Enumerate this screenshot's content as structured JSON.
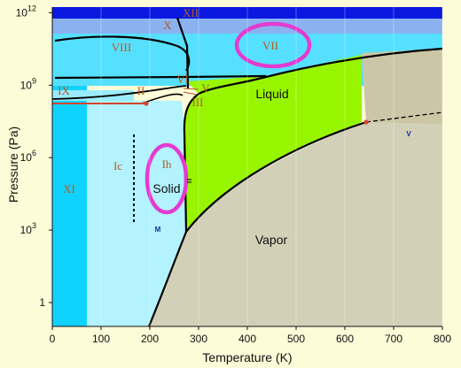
{
  "chart_data": {
    "type": "phase-diagram",
    "xlabel": "Temperature (K)",
    "ylabel": "Pressure (Pa)",
    "xlim": [
      0,
      800
    ],
    "x_ticks": [
      "0",
      "100",
      "200",
      "300",
      "400",
      "500",
      "600",
      "700",
      "800"
    ],
    "y_scale": "log",
    "y_ticks": [
      {
        "label": "1",
        "exp": null
      },
      {
        "label": "10",
        "exp": "3"
      },
      {
        "label": "10",
        "exp": "6"
      },
      {
        "label": "10",
        "exp": "9"
      },
      {
        "label": "10",
        "exp": "12"
      }
    ],
    "phase_labels": [
      {
        "id": "XII",
        "text": "XII",
        "style": "roman"
      },
      {
        "id": "X",
        "text": "X",
        "style": "roman"
      },
      {
        "id": "VIII",
        "text": "VIII",
        "style": "roman"
      },
      {
        "id": "VII",
        "text": "VII",
        "style": "roman"
      },
      {
        "id": "IX",
        "text": "IX",
        "style": "roman"
      },
      {
        "id": "II",
        "text": "II",
        "style": "roman"
      },
      {
        "id": "VI",
        "text": "VI",
        "style": "roman"
      },
      {
        "id": "V",
        "text": "V",
        "style": "roman"
      },
      {
        "id": "III",
        "text": "III",
        "style": "roman"
      },
      {
        "id": "Ic",
        "text": "Ic",
        "style": "roman"
      },
      {
        "id": "Ih",
        "text": "Ih",
        "style": "roman"
      },
      {
        "id": "XI",
        "text": "XI",
        "style": "roman"
      },
      {
        "id": "Liquid",
        "text": "Liquid",
        "style": "sans"
      },
      {
        "id": "Solid",
        "text": "Solid",
        "style": "sans"
      },
      {
        "id": "Vapor",
        "text": "Vapor",
        "style": "sans"
      },
      {
        "id": "M",
        "text": "M",
        "style": "tiny"
      },
      {
        "id": "v",
        "text": "V",
        "style": "tiny"
      }
    ],
    "special_points": [
      {
        "name": "triple point",
        "T": 273.16,
        "P": 611.657
      },
      {
        "name": "critical point",
        "T": 647,
        "P": 22064000
      }
    ],
    "highlights": [
      "VII",
      "Ih"
    ],
    "colors": {
      "background": "#fdfbd8",
      "vapor": "#d3d0b8",
      "liquid": "#98f500",
      "supercritical": "#cbc7a6",
      "ice_Ih": "#b2f3ff",
      "ice_XI": "#0fd3ff",
      "ice_high": "#56e0ff",
      "ice_Ic": "#99ecff",
      "band_X": "#8ab2f1",
      "band_top": "#0b18e0",
      "boundary": "#000000",
      "highlight": "#e53ad2",
      "label_roman": "#b65a1e",
      "point": "#d4452b"
    }
  }
}
